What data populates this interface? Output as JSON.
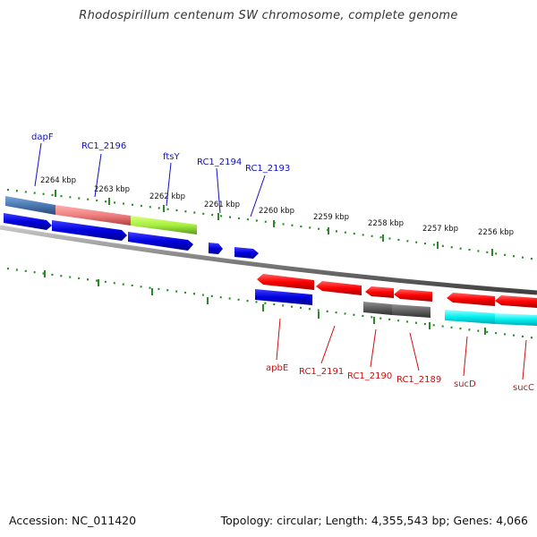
{
  "title": "Rhodospirillum centenum SW chromosome, complete genome",
  "footer": {
    "accession": "Accession: NC_011420",
    "topology": "Topology: circular; Length: 4,355,543 bp; Genes: 4,066"
  },
  "colors": {
    "forward_gene_label": "#1010c0",
    "reverse_gene_label": "#cc1010",
    "tick": "#2a8a2a",
    "backbone": "#808080"
  },
  "kbp_labels": [
    "2264 kbp",
    "2263 kbp",
    "2262 kbp",
    "2261 kbp",
    "2260 kbp",
    "2259 kbp",
    "2258 kbp",
    "2257 kbp",
    "2256 kbp"
  ],
  "top_genes": [
    {
      "label": "dapF"
    },
    {
      "label": "RC1_2196"
    },
    {
      "label": "ftsY"
    },
    {
      "label": "RC1_2194"
    },
    {
      "label": "RC1_2193"
    }
  ],
  "bottom_genes": [
    {
      "label": "apbE"
    },
    {
      "label": "RC1_2191"
    },
    {
      "label": "RC1_2190"
    },
    {
      "label": "RC1_2189"
    },
    {
      "label": "sucD"
    },
    {
      "label": "sucC"
    }
  ]
}
